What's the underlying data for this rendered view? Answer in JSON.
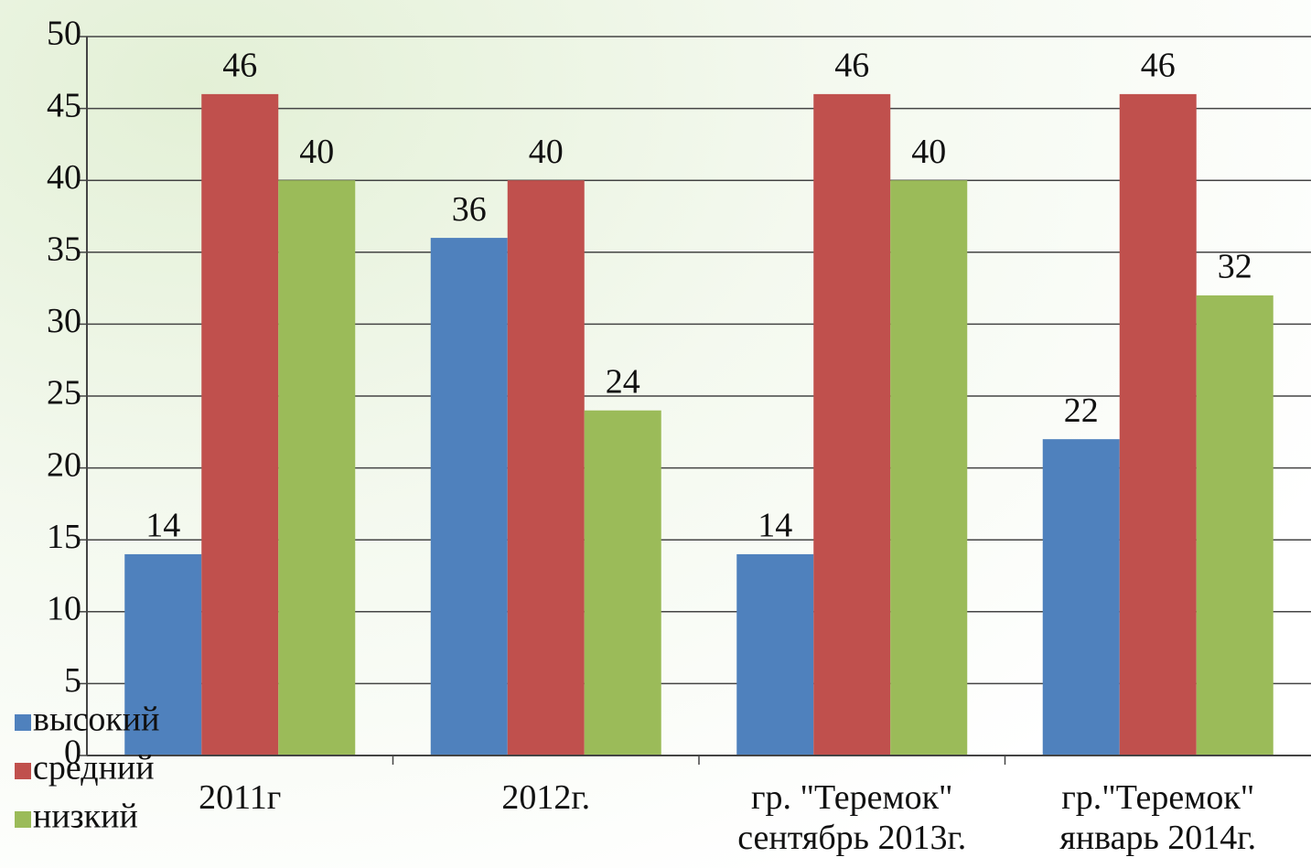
{
  "chart_data": {
    "type": "bar",
    "categories": [
      "2011г",
      "2012г.",
      "гр. \"Теремок\"\nсентябрь 2013г.",
      "гр.\"Теремок\"\nянварь 2014г."
    ],
    "series": [
      {
        "name": "высокий",
        "color": "#4f81bd",
        "values": [
          14,
          36,
          14,
          22
        ]
      },
      {
        "name": "средний",
        "color": "#c0504d",
        "values": [
          46,
          40,
          46,
          46
        ]
      },
      {
        "name": "низкий",
        "color": "#9bbb59",
        "values": [
          40,
          24,
          40,
          32
        ]
      }
    ],
    "ylim": [
      0,
      50
    ],
    "yticks": [
      0,
      5,
      10,
      15,
      20,
      25,
      30,
      35,
      40,
      45,
      50
    ],
    "grid": true
  }
}
